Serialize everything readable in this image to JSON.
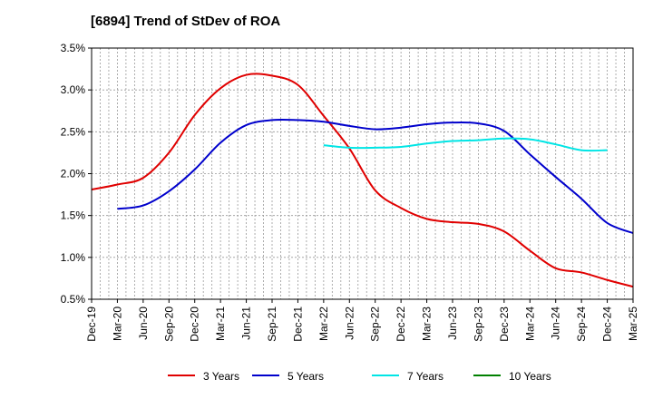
{
  "chart_data": {
    "type": "line",
    "title": "[6894]  Trend of StDev of ROA",
    "xlabel": "",
    "ylabel": "",
    "x_categories": [
      "Dec-19",
      "Mar-20",
      "Jun-20",
      "Sep-20",
      "Dec-20",
      "Mar-21",
      "Jun-21",
      "Sep-21",
      "Dec-21",
      "Mar-22",
      "Jun-22",
      "Sep-22",
      "Dec-22",
      "Mar-23",
      "Jun-23",
      "Sep-23",
      "Dec-23",
      "Mar-24",
      "Jun-24",
      "Sep-24",
      "Dec-24",
      "Mar-25"
    ],
    "ylim": [
      0.5,
      3.5
    ],
    "y_ticks": [
      0.5,
      1.0,
      1.5,
      2.0,
      2.5,
      3.0,
      3.5
    ],
    "y_tick_labels": [
      "0.5%",
      "1.0%",
      "1.5%",
      "2.0%",
      "2.5%",
      "3.0%",
      "3.5%"
    ],
    "grid": true,
    "legend_position": "bottom",
    "series": [
      {
        "name": "3 Years",
        "color": "#e00000",
        "start_index": 0,
        "values": [
          1.81,
          1.87,
          1.95,
          2.25,
          2.7,
          3.02,
          3.18,
          3.17,
          3.06,
          2.69,
          2.3,
          1.8,
          1.59,
          1.46,
          1.42,
          1.4,
          1.31,
          1.08,
          0.87,
          0.82,
          0.73,
          0.65
        ]
      },
      {
        "name": "5 Years",
        "color": "#0000cc",
        "start_index": 1,
        "values": [
          1.58,
          1.62,
          1.79,
          2.05,
          2.37,
          2.58,
          2.64,
          2.64,
          2.62,
          2.57,
          2.53,
          2.55,
          2.59,
          2.61,
          2.6,
          2.51,
          2.23,
          1.96,
          1.7,
          1.41,
          1.29
        ]
      },
      {
        "name": "7 Years",
        "color": "#00e5e5",
        "start_index": 9,
        "values": [
          2.34,
          2.31,
          2.31,
          2.32,
          2.36,
          2.39,
          2.4,
          2.42,
          2.41,
          2.35,
          2.28,
          2.28
        ]
      },
      {
        "name": "10 Years",
        "color": "#008000",
        "start_index": 0,
        "values": []
      }
    ]
  }
}
